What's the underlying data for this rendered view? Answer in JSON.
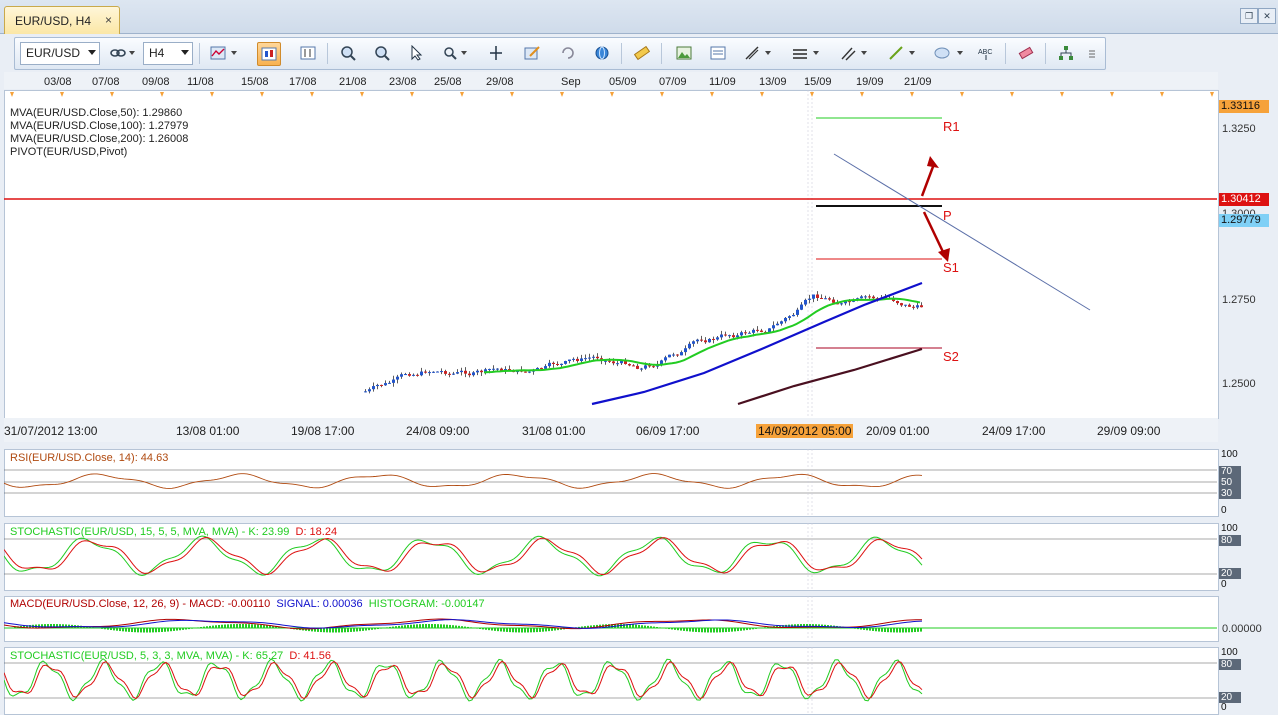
{
  "tab": {
    "title": "EUR/USD, H4",
    "close": "×"
  },
  "toolbar": {
    "symbol": "EUR/USD",
    "timeframe": "H4"
  },
  "date_axis": [
    "03/08",
    "07/08",
    "09/08",
    "11/08",
    "15/08",
    "17/08",
    "21/08",
    "23/08",
    "25/08",
    "29/08",
    "Sep",
    "05/09",
    "07/09",
    "11/09",
    "13/09",
    "15/09",
    "19/09",
    "21/09"
  ],
  "main_chart": {
    "legend": [
      {
        "text": "MVA(EUR/USD.Close,50): 1.29860",
        "color": "#22cc22"
      },
      {
        "text": "MVA(EUR/USD.Close,100): 1.27979",
        "color": "#1010cc"
      },
      {
        "text": "MVA(EUR/USD.Close,200): 1.26008",
        "color": "#4a1020"
      },
      {
        "text": "PIVOT(EUR/USD,Pivot)",
        "color": "#111111"
      }
    ],
    "pivot_labels": {
      "r1": "R1",
      "p": "P",
      "s1": "S1",
      "s2": "S2"
    },
    "price_ticks": [
      "1.3250",
      "1.3000",
      "1.2750",
      "1.2500"
    ],
    "price_boxes": [
      {
        "value": "1.33116",
        "bg": "#f6a23a",
        "color": "#111111"
      },
      {
        "value": "1.30412",
        "bg": "#dd1111",
        "color": "#ffffff"
      },
      {
        "value": "1.29779",
        "bg": "#7fd0f6",
        "color": "#111111"
      }
    ]
  },
  "time_axis": [
    "31/07/2012 13:00",
    "13/08 01:00",
    "19/08 17:00",
    "24/08 09:00",
    "31/08 01:00",
    "06/09 17:00",
    "14/09/2012 05:00",
    "20/09 01:00",
    "24/09 17:00",
    "29/09 09:00"
  ],
  "indicators": {
    "rsi": {
      "legend": "RSI(EUR/USD.Close, 14): 44.63",
      "levels": [
        "100",
        "70",
        "50",
        "30",
        "0"
      ]
    },
    "stoch1": {
      "prefix": "STOCHASTIC(EUR/USD, 15, 5, 5, MVA, MVA) -",
      "k": "K: 23.99",
      "d": "D: 18.24",
      "levels": [
        "100",
        "80",
        "20",
        "0"
      ]
    },
    "macd": {
      "prefix": "MACD(EUR/USD.Close, 12, 26, 9) -",
      "macd": "MACD: -0.00110",
      "signal": "SIGNAL: 0.00036",
      "histogram": "HISTOGRAM: -0.00147",
      "zero": "0.00000"
    },
    "stoch2": {
      "prefix": "STOCHASTIC(EUR/USD, 5, 3, 3, MVA, MVA) -",
      "k": "K: 65.27",
      "d": "D: 41.56",
      "levels": [
        "100",
        "80",
        "20",
        "0"
      ]
    }
  },
  "colors": {
    "green": "#22cc22",
    "blue": "#1010cc",
    "maroon": "#4a1020",
    "red": "#dd1111",
    "dark_red": "#b00000",
    "rsi": "#b04a10"
  }
}
